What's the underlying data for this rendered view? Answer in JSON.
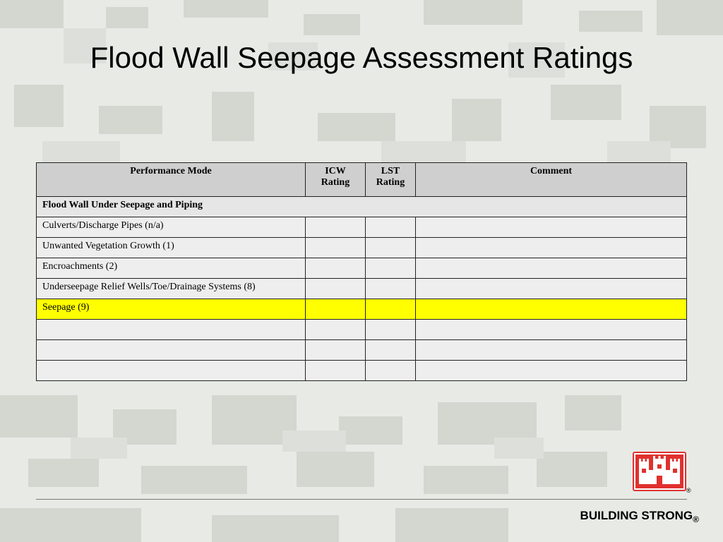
{
  "slide": {
    "title": "Flood Wall Seepage Assessment Ratings",
    "footer_text": "BUILDING STRONG",
    "footer_reg": "®",
    "logo_reg": "®",
    "logo_icon": "castle-icon",
    "colors": {
      "highlight": "#ffff00",
      "logo_red": "#e0312e",
      "header_bg": "#cfcfcf"
    }
  },
  "table": {
    "headers": {
      "performance_mode": "Performance Mode",
      "icw_line1": "ICW",
      "icw_line2": "Rating",
      "lst_line1": "LST",
      "lst_line2": "Rating",
      "comment": "Comment"
    },
    "section_title": "Flood Wall Under Seepage and Piping",
    "rows": [
      {
        "mode": "Culverts/Discharge Pipes (n/a)",
        "icw": "",
        "lst": "",
        "comment": ""
      },
      {
        "mode": "Unwanted Vegetation Growth (1)",
        "icw": "",
        "lst": "",
        "comment": ""
      },
      {
        "mode": "Encroachments (2)",
        "icw": "",
        "lst": "",
        "comment": ""
      },
      {
        "mode": "Underseepage Relief Wells/Toe/Drainage Systems (8)",
        "icw": "",
        "lst": "",
        "comment": ""
      },
      {
        "mode": "Seepage (9)",
        "icw": "",
        "lst": "",
        "comment": "",
        "highlighted": true
      },
      {
        "mode": "",
        "icw": "",
        "lst": "",
        "comment": ""
      },
      {
        "mode": "",
        "icw": "",
        "lst": "",
        "comment": ""
      },
      {
        "mode": "",
        "icw": "",
        "lst": "",
        "comment": ""
      }
    ]
  }
}
